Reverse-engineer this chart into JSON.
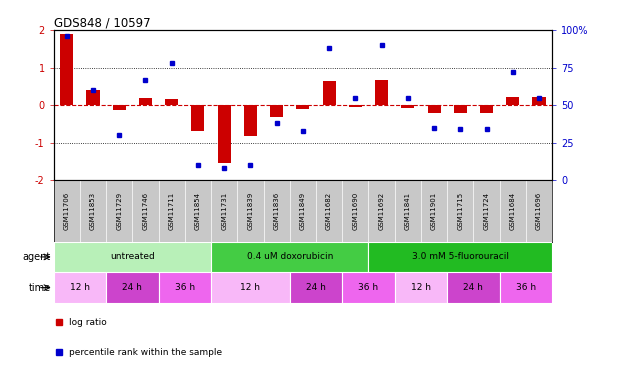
{
  "title": "GDS848 / 10597",
  "samples": [
    "GSM11706",
    "GSM11853",
    "GSM11729",
    "GSM11746",
    "GSM11711",
    "GSM11854",
    "GSM11731",
    "GSM11839",
    "GSM11836",
    "GSM11849",
    "GSM11682",
    "GSM11690",
    "GSM11692",
    "GSM11841",
    "GSM11901",
    "GSM11715",
    "GSM11724",
    "GSM11684",
    "GSM11696"
  ],
  "log_ratio": [
    1.9,
    0.4,
    -0.12,
    0.2,
    0.15,
    -0.68,
    -1.55,
    -0.82,
    -0.32,
    -0.1,
    0.65,
    -0.05,
    0.68,
    -0.07,
    -0.2,
    -0.22,
    -0.2,
    0.22,
    0.22
  ],
  "percentile_rank": [
    96,
    60,
    30,
    67,
    78,
    10,
    8,
    10,
    38,
    33,
    88,
    55,
    90,
    55,
    35,
    34,
    34,
    72,
    55
  ],
  "ylim_left": [
    -2,
    2
  ],
  "ylim_right": [
    0,
    100
  ],
  "yticks_left": [
    -2,
    -1,
    0,
    1,
    2
  ],
  "yticks_right": [
    0,
    25,
    50,
    75,
    100
  ],
  "bar_color": "#cc0000",
  "dot_color": "#0000cc",
  "background_color": "#ffffff",
  "sample_bg_color": "#c8c8c8",
  "agent_data": [
    {
      "label": "untreated",
      "start": 0,
      "end": 6,
      "color": "#b8f0b8"
    },
    {
      "label": "0.4 uM doxorubicin",
      "start": 6,
      "end": 12,
      "color": "#44cc44"
    },
    {
      "label": "3.0 mM 5-fluorouracil",
      "start": 12,
      "end": 19,
      "color": "#22bb22"
    }
  ],
  "time_data": [
    {
      "label": "12 h",
      "start": 0,
      "end": 2,
      "color": "#f8b8f8"
    },
    {
      "label": "24 h",
      "start": 2,
      "end": 4,
      "color": "#cc44cc"
    },
    {
      "label": "36 h",
      "start": 4,
      "end": 6,
      "color": "#ee66ee"
    },
    {
      "label": "12 h",
      "start": 6,
      "end": 9,
      "color": "#f8b8f8"
    },
    {
      "label": "24 h",
      "start": 9,
      "end": 11,
      "color": "#cc44cc"
    },
    {
      "label": "36 h",
      "start": 11,
      "end": 13,
      "color": "#ee66ee"
    },
    {
      "label": "12 h",
      "start": 13,
      "end": 15,
      "color": "#f8b8f8"
    },
    {
      "label": "24 h",
      "start": 15,
      "end": 17,
      "color": "#cc44cc"
    },
    {
      "label": "36 h",
      "start": 17,
      "end": 19,
      "color": "#ee66ee"
    }
  ]
}
